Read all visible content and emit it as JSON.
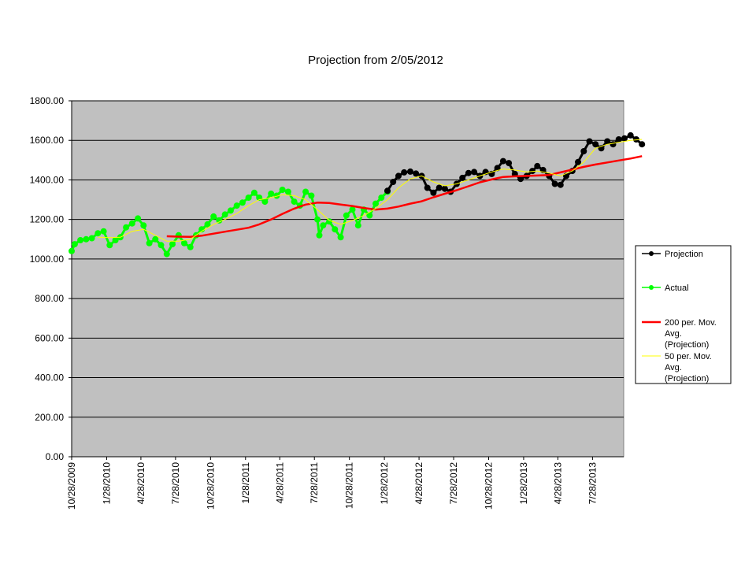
{
  "chart_data": {
    "type": "line",
    "title": "Projection from 2/05/2012",
    "xlabel": "",
    "ylabel": "",
    "ylim": [
      0,
      1800
    ],
    "xlim": [
      "10/28/2009",
      "10/18/2013"
    ],
    "y_ticks": [
      "0.00",
      "200.00",
      "400.00",
      "600.00",
      "800.00",
      "1000.00",
      "1200.00",
      "1400.00",
      "1600.00",
      "1800.00"
    ],
    "x_ticks": [
      "10/28/2009",
      "1/28/2010",
      "4/28/2010",
      "7/28/2010",
      "10/28/2010",
      "1/28/2011",
      "4/28/2011",
      "7/28/2011",
      "10/28/2011",
      "1/28/2012",
      "4/28/2012",
      "7/28/2012",
      "10/28/2012",
      "1/28/2013",
      "4/28/2013",
      "7/28/2013"
    ],
    "grid": "horizontal",
    "plot_background": "#c0c0c0",
    "legend_position": "right",
    "series": [
      {
        "name": "Projection",
        "color": "#000000",
        "marker": "circle",
        "points": [
          [
            "2/05/2012",
            1345
          ],
          [
            "2/20/2012",
            1390
          ],
          [
            "3/05/2012",
            1420
          ],
          [
            "3/20/2012",
            1438
          ],
          [
            "4/05/2012",
            1442
          ],
          [
            "4/20/2012",
            1432
          ],
          [
            "5/05/2012",
            1420
          ],
          [
            "5/20/2012",
            1360
          ],
          [
            "6/05/2012",
            1335
          ],
          [
            "6/20/2012",
            1360
          ],
          [
            "7/05/2012",
            1355
          ],
          [
            "7/20/2012",
            1340
          ],
          [
            "8/05/2012",
            1380
          ],
          [
            "8/20/2012",
            1410
          ],
          [
            "9/05/2012",
            1435
          ],
          [
            "9/20/2012",
            1440
          ],
          [
            "10/05/2012",
            1420
          ],
          [
            "10/20/2012",
            1440
          ],
          [
            "11/05/2012",
            1430
          ],
          [
            "11/20/2012",
            1460
          ],
          [
            "12/05/2012",
            1495
          ],
          [
            "12/20/2012",
            1485
          ],
          [
            "1/05/2013",
            1430
          ],
          [
            "1/20/2013",
            1405
          ],
          [
            "2/05/2013",
            1420
          ],
          [
            "2/20/2013",
            1445
          ],
          [
            "3/05/2013",
            1470
          ],
          [
            "3/20/2013",
            1450
          ],
          [
            "4/05/2013",
            1420
          ],
          [
            "4/20/2013",
            1380
          ],
          [
            "5/05/2013",
            1375
          ],
          [
            "5/20/2013",
            1420
          ],
          [
            "6/05/2013",
            1445
          ],
          [
            "6/20/2013",
            1490
          ],
          [
            "7/05/2013",
            1545
          ],
          [
            "7/20/2013",
            1595
          ],
          [
            "8/05/2013",
            1580
          ],
          [
            "8/20/2013",
            1560
          ],
          [
            "9/05/2013",
            1595
          ],
          [
            "9/20/2013",
            1580
          ],
          [
            "10/05/2013",
            1605
          ],
          [
            "10/20/2013",
            1610
          ],
          [
            "11/05/2013",
            1625
          ],
          [
            "11/20/2013",
            1605
          ],
          [
            "12/05/2013",
            1580
          ]
        ]
      },
      {
        "name": "Actual",
        "color": "#00ff00",
        "marker": "circle",
        "points": [
          [
            "10/28/2009",
            1040
          ],
          [
            "11/05/2009",
            1075
          ],
          [
            "11/20/2009",
            1095
          ],
          [
            "12/05/2009",
            1100
          ],
          [
            "12/20/2009",
            1105
          ],
          [
            "1/05/2010",
            1130
          ],
          [
            "1/20/2010",
            1140
          ],
          [
            "2/05/2010",
            1070
          ],
          [
            "2/20/2010",
            1095
          ],
          [
            "3/05/2010",
            1110
          ],
          [
            "3/20/2010",
            1160
          ],
          [
            "4/05/2010",
            1180
          ],
          [
            "4/20/2010",
            1205
          ],
          [
            "5/05/2010",
            1170
          ],
          [
            "5/20/2010",
            1080
          ],
          [
            "6/05/2010",
            1100
          ],
          [
            "6/20/2010",
            1070
          ],
          [
            "7/05/2010",
            1025
          ],
          [
            "7/20/2010",
            1075
          ],
          [
            "8/05/2010",
            1120
          ],
          [
            "8/20/2010",
            1080
          ],
          [
            "9/05/2010",
            1060
          ],
          [
            "9/20/2010",
            1120
          ],
          [
            "10/05/2010",
            1150
          ],
          [
            "10/20/2010",
            1175
          ],
          [
            "11/05/2010",
            1215
          ],
          [
            "11/20/2010",
            1195
          ],
          [
            "12/05/2010",
            1225
          ],
          [
            "12/20/2010",
            1245
          ],
          [
            "1/05/2011",
            1270
          ],
          [
            "1/20/2011",
            1285
          ],
          [
            "2/05/2011",
            1310
          ],
          [
            "2/20/2011",
            1335
          ],
          [
            "3/05/2011",
            1310
          ],
          [
            "3/20/2011",
            1290
          ],
          [
            "4/05/2011",
            1330
          ],
          [
            "4/20/2011",
            1320
          ],
          [
            "5/05/2011",
            1350
          ],
          [
            "5/20/2011",
            1340
          ],
          [
            "6/05/2011",
            1290
          ],
          [
            "6/20/2011",
            1270
          ],
          [
            "7/05/2011",
            1340
          ],
          [
            "7/20/2011",
            1320
          ],
          [
            "8/05/2011",
            1200
          ],
          [
            "8/10/2011",
            1120
          ],
          [
            "8/20/2011",
            1170
          ],
          [
            "9/05/2011",
            1190
          ],
          [
            "9/20/2011",
            1150
          ],
          [
            "10/05/2011",
            1110
          ],
          [
            "10/20/2011",
            1220
          ],
          [
            "11/05/2011",
            1250
          ],
          [
            "11/20/2011",
            1170
          ],
          [
            "12/05/2011",
            1250
          ],
          [
            "12/20/2011",
            1220
          ],
          [
            "1/05/2012",
            1280
          ],
          [
            "1/20/2012",
            1310
          ],
          [
            "2/05/2012",
            1340
          ]
        ]
      },
      {
        "name": "200 per. Mov. Avg. (Projection)",
        "color": "#ff0000",
        "marker": "none",
        "points": [
          [
            "7/05/2010",
            1115
          ],
          [
            "8/05/2010",
            1113
          ],
          [
            "9/05/2010",
            1112
          ],
          [
            "10/05/2010",
            1118
          ],
          [
            "11/05/2010",
            1128
          ],
          [
            "12/05/2010",
            1138
          ],
          [
            "1/05/2011",
            1148
          ],
          [
            "2/05/2011",
            1158
          ],
          [
            "3/05/2011",
            1175
          ],
          [
            "4/05/2011",
            1200
          ],
          [
            "5/05/2011",
            1228
          ],
          [
            "6/05/2011",
            1255
          ],
          [
            "7/05/2011",
            1275
          ],
          [
            "8/05/2011",
            1285
          ],
          [
            "9/05/2011",
            1283
          ],
          [
            "10/05/2011",
            1275
          ],
          [
            "11/05/2011",
            1268
          ],
          [
            "12/05/2011",
            1258
          ],
          [
            "1/05/2012",
            1250
          ],
          [
            "2/05/2012",
            1255
          ],
          [
            "3/05/2012",
            1265
          ],
          [
            "4/05/2012",
            1280
          ],
          [
            "5/05/2012",
            1292
          ],
          [
            "6/05/2012",
            1312
          ],
          [
            "7/05/2012",
            1330
          ],
          [
            "8/05/2012",
            1348
          ],
          [
            "9/05/2012",
            1368
          ],
          [
            "10/05/2012",
            1388
          ],
          [
            "11/05/2012",
            1402
          ],
          [
            "12/05/2012",
            1415
          ],
          [
            "1/05/2013",
            1418
          ],
          [
            "2/05/2013",
            1420
          ],
          [
            "3/05/2013",
            1422
          ],
          [
            "4/05/2013",
            1425
          ],
          [
            "5/05/2013",
            1438
          ],
          [
            "6/05/2013",
            1452
          ],
          [
            "7/05/2013",
            1466
          ],
          [
            "8/05/2013",
            1478
          ],
          [
            "9/05/2013",
            1488
          ],
          [
            "10/05/2013",
            1498
          ],
          [
            "11/05/2013",
            1508
          ],
          [
            "12/05/2013",
            1520
          ]
        ]
      },
      {
        "name": "50 per. Mov. Avg. (Projection)",
        "color": "#ffff00",
        "marker": "none",
        "points": [
          [
            "1/05/2010",
            1110
          ],
          [
            "2/05/2010",
            1108
          ],
          [
            "3/05/2010",
            1110
          ],
          [
            "4/05/2010",
            1140
          ],
          [
            "5/05/2010",
            1150
          ],
          [
            "6/05/2010",
            1120
          ],
          [
            "7/05/2010",
            1090
          ],
          [
            "8/05/2010",
            1090
          ],
          [
            "9/05/2010",
            1100
          ],
          [
            "10/05/2010",
            1140
          ],
          [
            "11/05/2010",
            1175
          ],
          [
            "12/05/2010",
            1200
          ],
          [
            "1/05/2011",
            1230
          ],
          [
            "2/05/2011",
            1270
          ],
          [
            "3/05/2011",
            1300
          ],
          [
            "4/05/2011",
            1310
          ],
          [
            "5/05/2011",
            1325
          ],
          [
            "6/05/2011",
            1320
          ],
          [
            "7/05/2011",
            1300
          ],
          [
            "8/05/2011",
            1250
          ],
          [
            "9/05/2011",
            1195
          ],
          [
            "10/05/2011",
            1175
          ],
          [
            "11/05/2011",
            1195
          ],
          [
            "12/05/2011",
            1220
          ],
          [
            "1/05/2012",
            1255
          ],
          [
            "2/05/2012",
            1300
          ],
          [
            "3/05/2012",
            1360
          ],
          [
            "4/05/2012",
            1405
          ],
          [
            "5/05/2012",
            1420
          ],
          [
            "6/05/2012",
            1390
          ],
          [
            "7/05/2012",
            1370
          ],
          [
            "8/05/2012",
            1380
          ],
          [
            "9/05/2012",
            1400
          ],
          [
            "10/05/2012",
            1420
          ],
          [
            "11/05/2012",
            1440
          ],
          [
            "12/05/2012",
            1455
          ],
          [
            "1/05/2013",
            1450
          ],
          [
            "2/05/2013",
            1440
          ],
          [
            "3/05/2013",
            1445
          ],
          [
            "4/05/2013",
            1435
          ],
          [
            "5/05/2013",
            1420
          ],
          [
            "6/05/2013",
            1445
          ],
          [
            "7/05/2013",
            1490
          ],
          [
            "8/05/2013",
            1560
          ],
          [
            "9/05/2013",
            1580
          ],
          [
            "10/05/2013",
            1590
          ],
          [
            "11/05/2013",
            1600
          ],
          [
            "12/05/2013",
            1605
          ]
        ]
      }
    ]
  }
}
